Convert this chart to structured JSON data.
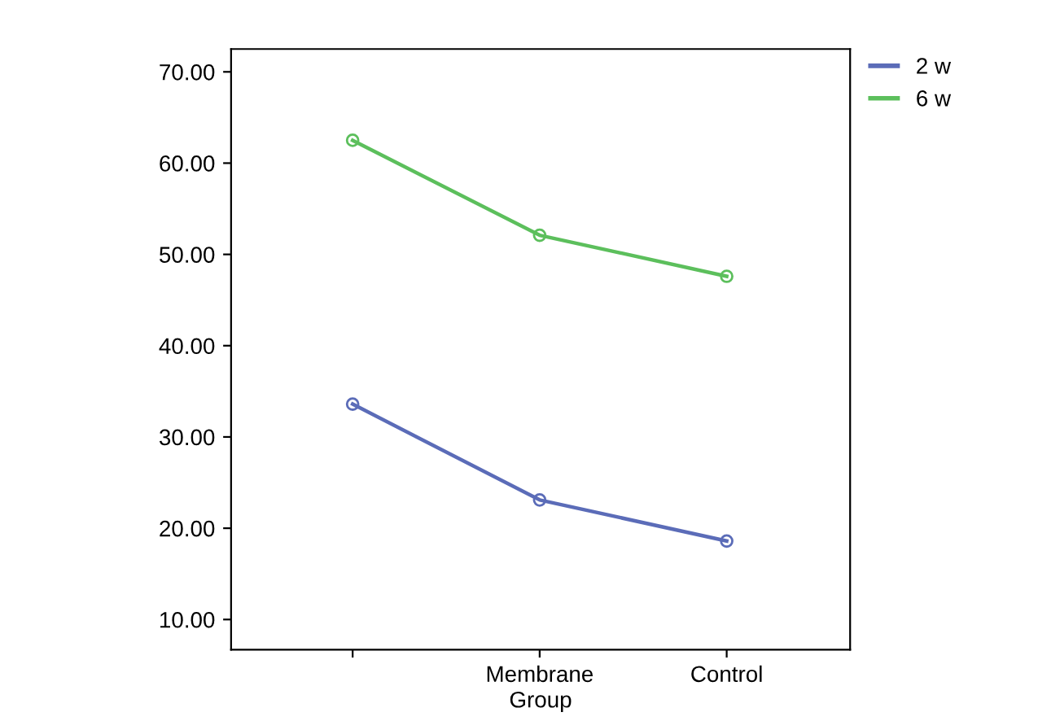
{
  "chart_data": {
    "type": "line",
    "xlabel": "Group",
    "categories": [
      null,
      "Membrane",
      "Control"
    ],
    "series": [
      {
        "name": "2 w",
        "color": "#5b6cb8",
        "values": [
          33.6,
          23.1,
          18.6
        ]
      },
      {
        "name": "6 w",
        "color": "#5cbf5c",
        "values": [
          62.5,
          52.1,
          47.6
        ]
      }
    ],
    "ylim": [
      6.7,
      72.5
    ],
    "yticks": [
      {
        "value": 10,
        "label": "10.00"
      },
      {
        "value": 20,
        "label": "20.00"
      },
      {
        "value": 30,
        "label": "30.00"
      },
      {
        "value": 40,
        "label": "40.00"
      },
      {
        "value": 50,
        "label": "50.00"
      },
      {
        "value": 60,
        "label": "60.00"
      },
      {
        "value": 70,
        "label": "70.00"
      }
    ],
    "marker": "circle",
    "grid": false,
    "legend": "top right"
  }
}
